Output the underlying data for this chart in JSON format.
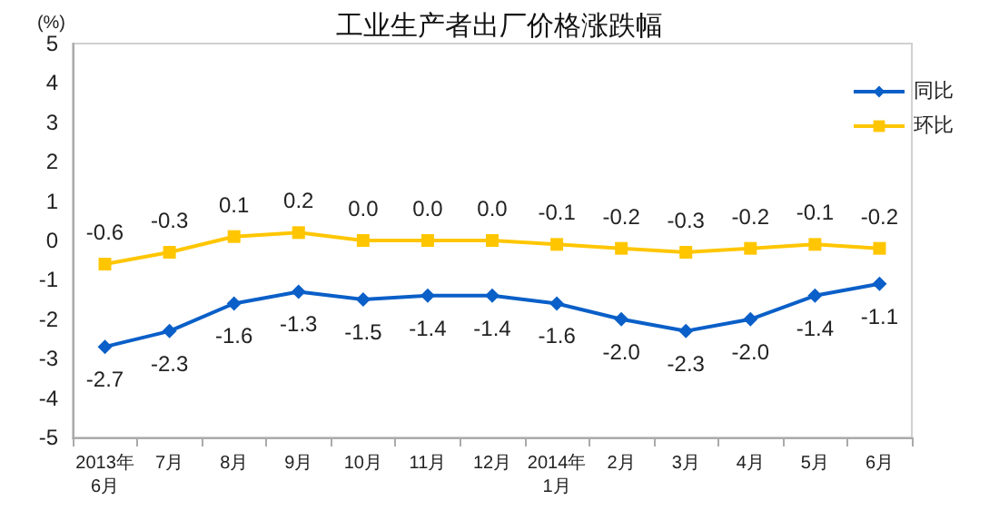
{
  "chart_data": {
    "type": "line",
    "title": "工业生产者出厂价格涨跌幅",
    "ylabel": "(%)",
    "categories": [
      "2013年\n6月",
      "7月",
      "8月",
      "9月",
      "10月",
      "11月",
      "12月",
      "2014年\n1月",
      "2月",
      "3月",
      "4月",
      "5月",
      "6月"
    ],
    "series": [
      {
        "name": "同比",
        "color": "#0a5fc8",
        "marker": "diamond",
        "values": [
          -2.7,
          -2.3,
          -1.6,
          -1.3,
          -1.5,
          -1.4,
          -1.4,
          -1.6,
          -2.0,
          -2.3,
          -2.0,
          -1.4,
          -1.1
        ],
        "value_labels": [
          "-2.7",
          "-2.3",
          "-1.6",
          "-1.3",
          "-1.5",
          "-1.4",
          "-1.4",
          "-1.6",
          "-2.0",
          "-2.3",
          "-2.0",
          "-1.4",
          "-1.1"
        ]
      },
      {
        "name": "环比",
        "color": "#ffc600",
        "marker": "square",
        "values": [
          -0.6,
          -0.3,
          0.1,
          0.2,
          0.0,
          0.0,
          0.0,
          -0.1,
          -0.2,
          -0.3,
          -0.2,
          -0.1,
          -0.2
        ],
        "value_labels": [
          "-0.6",
          "-0.3",
          "0.1",
          "0.2",
          "0.0",
          "0.0",
          "0.0",
          "-0.1",
          "-0.2",
          "-0.3",
          "-0.2",
          "-0.1",
          "-0.2"
        ]
      }
    ],
    "ylim": [
      -5,
      5
    ],
    "yticks": [
      -5,
      -4,
      -3,
      -2,
      -1,
      0,
      1,
      2,
      3,
      4,
      5
    ],
    "grid": false,
    "legend": "top right",
    "line_style": "solid"
  }
}
